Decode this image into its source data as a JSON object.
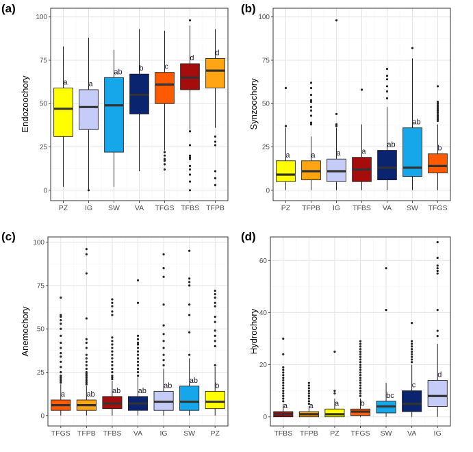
{
  "colors": {
    "PZ": "#ffff00",
    "IG": "#c6ccf8",
    "SW": "#16a7ea",
    "VA": "#0b2470",
    "TFGS": "#ff5a00",
    "TFBS": "#a50c0c",
    "TFPB": "#ffa412",
    "median": "#333333",
    "outline": "#222222",
    "grid_major": "#e5e5e5",
    "grid_minor": "#f3f3f3",
    "panel_border": "#333333",
    "axis_text": "#4d4d4d",
    "letter_text": "#1a1a2e"
  },
  "chart_data": [
    {
      "panel": "(a)",
      "type": "box",
      "ylabel": "Endozoochory",
      "ylim": [
        -6,
        105
      ],
      "yticks": [
        0,
        25,
        50,
        75,
        100
      ],
      "categories": [
        "PZ",
        "IG",
        "SW",
        "VA",
        "TFGS",
        "TFBS",
        "TFPB"
      ],
      "boxes": [
        {
          "cat": "PZ",
          "min": 2,
          "q1": 31,
          "median": 47,
          "q3": 59,
          "max": 83,
          "outliers": [],
          "letter": "a"
        },
        {
          "cat": "IG",
          "min": 0,
          "q1": 35,
          "median": 48,
          "q3": 58,
          "max": 88,
          "outliers": [
            0
          ],
          "letter": "a"
        },
        {
          "cat": "SW",
          "min": 2,
          "q1": 22,
          "median": 49,
          "q3": 65,
          "max": 81,
          "outliers": [],
          "letter": "ab"
        },
        {
          "cat": "VA",
          "min": 11,
          "q1": 44,
          "median": 55,
          "q3": 67,
          "max": 93,
          "outliers": [],
          "letter": "b"
        },
        {
          "cat": "TFGS",
          "min": 23,
          "q1": 50,
          "median": 61,
          "q3": 68,
          "max": 92,
          "outliers": [
            22,
            20,
            18,
            17,
            15,
            12
          ],
          "letter": "c"
        },
        {
          "cat": "TFBS",
          "min": 35,
          "q1": 58,
          "median": 65,
          "q3": 73,
          "max": 95,
          "outliers": [
            98,
            34,
            26,
            20,
            19,
            18,
            14,
            12,
            9,
            5,
            0
          ],
          "letter": "d"
        },
        {
          "cat": "TFPB",
          "min": 36,
          "q1": 59,
          "median": 69,
          "q3": 76,
          "max": 93,
          "outliers": [
            31,
            28,
            26,
            11,
            7,
            3
          ],
          "letter": "d"
        }
      ]
    },
    {
      "panel": "(b)",
      "type": "box",
      "ylabel": "Synzoochory",
      "ylim": [
        -6,
        105
      ],
      "yticks": [
        0,
        25,
        50,
        75,
        100
      ],
      "categories": [
        "PZ",
        "TFPB",
        "IG",
        "TFBS",
        "VA",
        "SW",
        "TFGS"
      ],
      "boxes": [
        {
          "cat": "PZ",
          "min": 0,
          "q1": 5,
          "median": 9,
          "q3": 17,
          "max": 36,
          "outliers": [
            37,
            59
          ],
          "letter": "a"
        },
        {
          "cat": "TFPB",
          "min": 0,
          "q1": 6,
          "median": 11,
          "q3": 17,
          "max": 31,
          "outliers": [
            38,
            39,
            43,
            46,
            48,
            51,
            52,
            55,
            59,
            62
          ],
          "letter": "a"
        },
        {
          "cat": "IG",
          "min": 0,
          "q1": 5,
          "median": 11,
          "q3": 18,
          "max": 36,
          "outliers": [
            37,
            38,
            44,
            98
          ],
          "letter": "a"
        },
        {
          "cat": "TFBS",
          "min": 0,
          "q1": 5,
          "median": 12,
          "q3": 19,
          "max": 38,
          "outliers": [
            58
          ],
          "letter": "a"
        },
        {
          "cat": "VA",
          "min": 0,
          "q1": 6,
          "median": 13,
          "q3": 23,
          "max": 48,
          "outliers": [
            53,
            57,
            60,
            64,
            66,
            70
          ],
          "letter": "ab"
        },
        {
          "cat": "SW",
          "min": 0,
          "q1": 8,
          "median": 13,
          "q3": 36,
          "max": 76,
          "outliers": [
            82
          ],
          "letter": "ab"
        },
        {
          "cat": "TFGS",
          "min": 0,
          "q1": 10,
          "median": 14,
          "q3": 21,
          "max": 38,
          "outliers": [
            40,
            41,
            42,
            43,
            44,
            45,
            46,
            47,
            48,
            49,
            50,
            51,
            60
          ],
          "letter": "b"
        }
      ]
    },
    {
      "panel": "(c)",
      "type": "box",
      "ylabel": "Anemochory",
      "ylim": [
        -6,
        103
      ],
      "yticks": [
        0,
        25,
        50,
        75,
        100
      ],
      "categories": [
        "TFGS",
        "TFPB",
        "TFBS",
        "VA",
        "IG",
        "SW",
        "PZ"
      ],
      "boxes": [
        {
          "cat": "TFGS",
          "min": 0,
          "q1": 3,
          "median": 6,
          "q3": 9,
          "max": 18,
          "outliers": [
            19,
            20,
            21,
            22,
            23,
            25,
            28,
            31,
            34,
            36,
            39,
            42,
            46,
            50,
            53,
            55,
            57,
            58,
            68
          ],
          "letter": "a"
        },
        {
          "cat": "TFPB",
          "min": 0,
          "q1": 3,
          "median": 6,
          "q3": 9,
          "max": 17,
          "outliers": [
            18,
            19,
            20,
            21,
            22,
            23,
            24,
            25,
            27,
            29,
            31,
            33,
            35,
            39,
            42,
            44,
            56,
            82,
            93,
            96
          ],
          "letter": "ab"
        },
        {
          "cat": "TFBS",
          "min": 0,
          "q1": 4,
          "median": 7,
          "q3": 11,
          "max": 20,
          "outliers": [
            21,
            22,
            23,
            25,
            27,
            29,
            31,
            33,
            35,
            37,
            39,
            41,
            43,
            45,
            58,
            60,
            63,
            65,
            67
          ],
          "letter": "ab"
        },
        {
          "cat": "VA",
          "min": 0,
          "q1": 3,
          "median": 7,
          "q3": 11,
          "max": 22,
          "outliers": [
            23,
            25,
            27,
            29,
            31,
            33,
            35,
            37,
            39,
            41,
            42,
            44,
            46,
            65,
            78
          ],
          "letter": "ab"
        },
        {
          "cat": "IG",
          "min": 0,
          "q1": 3,
          "median": 8,
          "q3": 14,
          "max": 27,
          "outliers": [
            29,
            32,
            35,
            39,
            43,
            47,
            52,
            64,
            80,
            85,
            93
          ],
          "letter": "ab"
        },
        {
          "cat": "SW",
          "min": 0,
          "q1": 3,
          "median": 8,
          "q3": 17,
          "max": 33,
          "outliers": [
            35,
            48,
            58,
            64,
            75,
            77,
            79,
            95
          ],
          "letter": "ab"
        },
        {
          "cat": "PZ",
          "min": 0,
          "q1": 4,
          "median": 8,
          "q3": 14,
          "max": 28,
          "outliers": [
            29,
            40,
            43,
            46,
            49,
            54,
            57,
            63,
            65,
            68,
            70,
            72
          ],
          "letter": "b"
        }
      ]
    },
    {
      "panel": "(d)",
      "type": "box",
      "ylabel": "Hydrochory",
      "ylim": [
        -3.5,
        69
      ],
      "yticks": [
        0,
        20,
        40,
        60
      ],
      "categories": [
        "TFBS",
        "TFPB",
        "PZ",
        "TFGS",
        "SW",
        "VA",
        "IG"
      ],
      "boxes": [
        {
          "cat": "TFBS",
          "min": 0,
          "q1": 0,
          "median": 1,
          "q3": 2,
          "max": 5,
          "outliers": [
            6,
            7,
            8,
            9,
            10,
            11,
            12,
            13,
            14,
            15,
            16,
            17,
            18,
            19,
            24,
            30
          ],
          "letter": "a"
        },
        {
          "cat": "TFPB",
          "min": 0,
          "q1": 0,
          "median": 1,
          "q3": 2,
          "max": 4,
          "outliers": [
            5,
            6,
            7,
            8,
            9,
            10,
            11,
            12,
            13
          ],
          "letter": "a"
        },
        {
          "cat": "PZ",
          "min": 0,
          "q1": 0,
          "median": 1,
          "q3": 3,
          "max": 7,
          "outliers": [
            9,
            10,
            25
          ],
          "letter": "a"
        },
        {
          "cat": "TFGS",
          "min": 0,
          "q1": 0.5,
          "median": 2,
          "q3": 3,
          "max": 7,
          "outliers": [
            8,
            9,
            10,
            11,
            12,
            13,
            14,
            15,
            16,
            17,
            18,
            19,
            20,
            21,
            22,
            23,
            24,
            25,
            26,
            27,
            28,
            29
          ],
          "letter": "b"
        },
        {
          "cat": "SW",
          "min": 0,
          "q1": 1.5,
          "median": 4,
          "q3": 6,
          "max": 13,
          "outliers": [
            41,
            57
          ],
          "letter": "bc"
        },
        {
          "cat": "VA",
          "min": 0,
          "q1": 2,
          "median": 5,
          "q3": 10,
          "max": 20,
          "outliers": [
            21,
            22,
            23,
            24,
            25,
            26,
            27,
            28,
            29,
            36
          ],
          "letter": "c"
        },
        {
          "cat": "IG",
          "min": 0,
          "q1": 4,
          "median": 8,
          "q3": 14,
          "max": 28,
          "outliers": [
            31,
            33,
            41,
            55,
            56,
            57,
            58,
            61,
            67
          ],
          "letter": "d"
        }
      ]
    }
  ]
}
